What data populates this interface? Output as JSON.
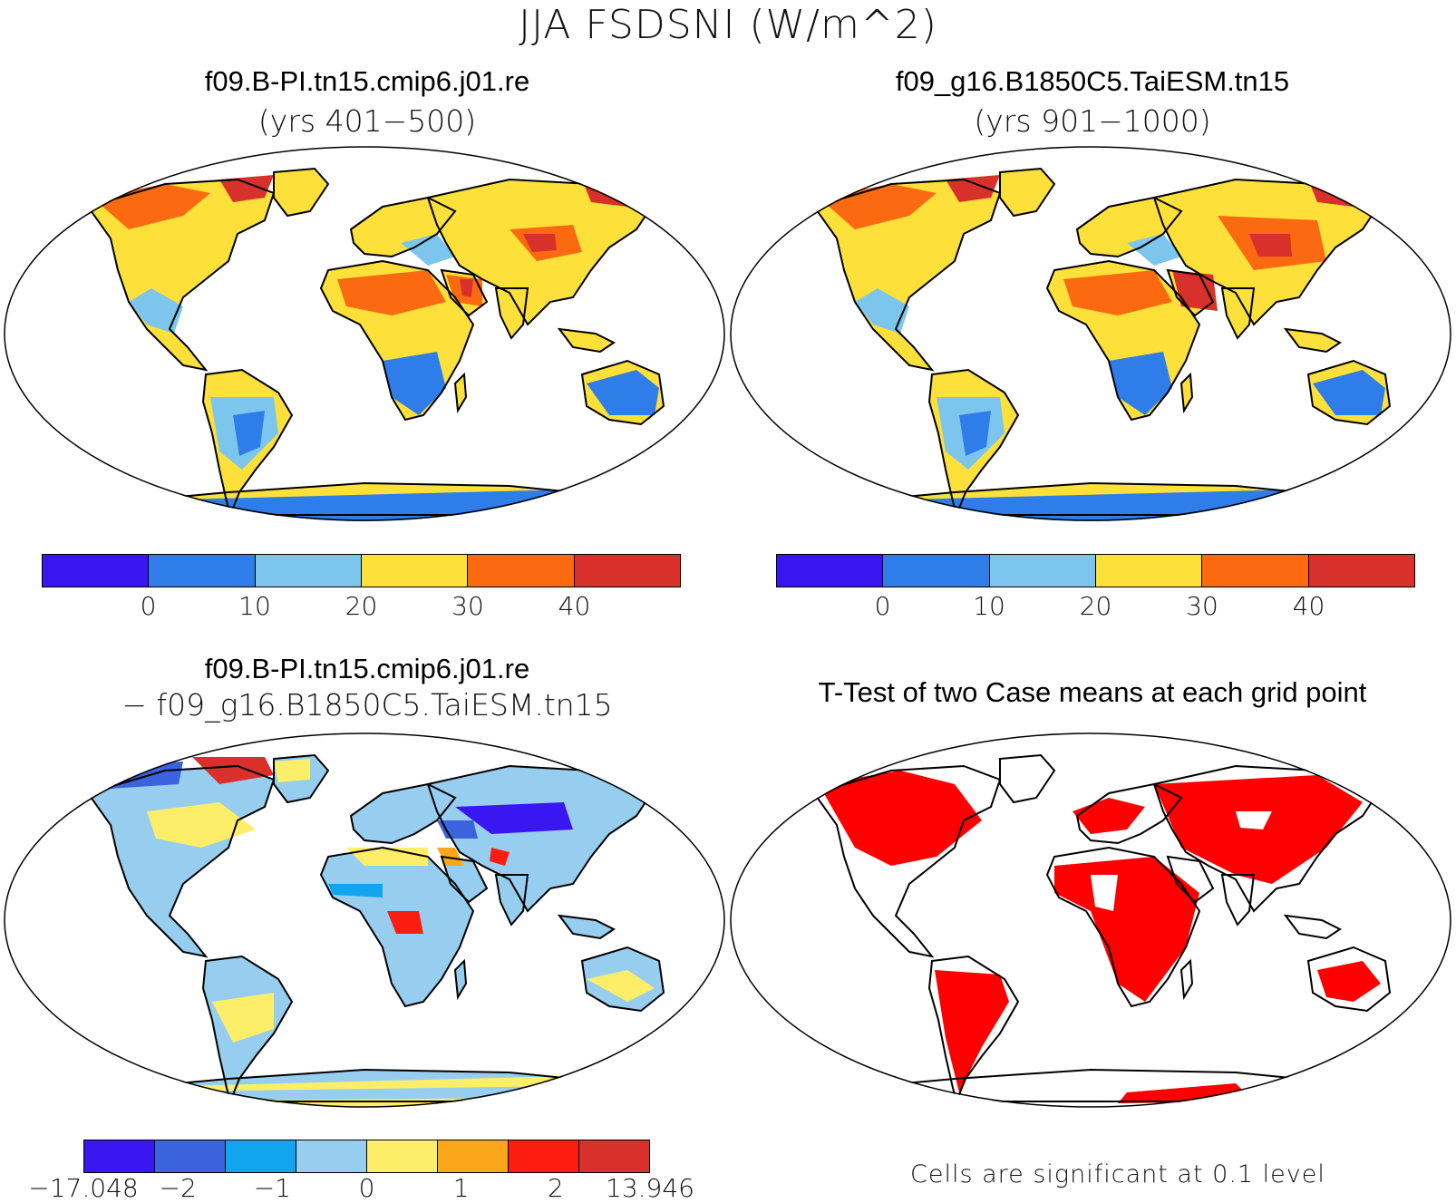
{
  "figure": {
    "title": "JJA FSDSNI (W/m^2)"
  },
  "panels": {
    "case1": {
      "title": "f09.B-PI.tn15.cmip6.j01.re",
      "subtitle": "(yrs 401−500)"
    },
    "case2": {
      "title": "f09_g16.B1850C5.TaiESM.tn15",
      "subtitle": "(yrs 901−1000)"
    },
    "diff": {
      "title": "f09.B-PI.tn15.cmip6.j01.re",
      "subtitle": "− f09_g16.B1850C5.TaiESM.tn15"
    },
    "ttest": {
      "title": "T-Test of two Case means at each grid point",
      "note": "Cells are significant at 0.1 level"
    }
  },
  "colorbars": {
    "main": {
      "colors": [
        "#3a17f0",
        "#2e7de8",
        "#7cc6ee",
        "#fde03a",
        "#fb6a10",
        "#d8312b"
      ],
      "labels": [
        "0",
        "10",
        "20",
        "30",
        "40"
      ]
    },
    "diff": {
      "colors": [
        "#3a17f0",
        "#3a63dd",
        "#13a4f0",
        "#97cdee",
        "#fdee6a",
        "#fba71c",
        "#fb1e10",
        "#d8312b"
      ],
      "labels": [
        "−17.048",
        "−2",
        "−1",
        "0",
        "1",
        "2",
        "13.946"
      ]
    }
  },
  "colors": {
    "significant": "#ff0000",
    "coastline": "#000000",
    "background": "#ffffff"
  }
}
